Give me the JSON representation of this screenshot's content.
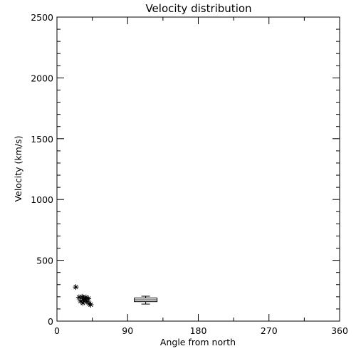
{
  "chart_data": {
    "type": "scatter",
    "title": "Velocity distribution",
    "xlabel": "Angle from north",
    "ylabel": "Velocity (km/s)",
    "xlim": [
      0,
      360
    ],
    "ylim": [
      0,
      2500
    ],
    "x_ticks": [
      "0",
      "90",
      "180",
      "270",
      "360"
    ],
    "y_ticks": [
      "0",
      "500",
      "1000",
      "1500",
      "2000",
      "2500"
    ],
    "grid": false,
    "marker": "asterisk",
    "points": [
      {
        "x": 24,
        "y": 280
      },
      {
        "x": 28,
        "y": 195
      },
      {
        "x": 30,
        "y": 165
      },
      {
        "x": 32,
        "y": 200
      },
      {
        "x": 33,
        "y": 150
      },
      {
        "x": 34,
        "y": 185
      },
      {
        "x": 36,
        "y": 175
      },
      {
        "x": 37,
        "y": 195
      },
      {
        "x": 38,
        "y": 160
      },
      {
        "x": 40,
        "y": 185
      },
      {
        "x": 41,
        "y": 145
      },
      {
        "x": 43,
        "y": 135
      }
    ],
    "boxplot": {
      "x_center": 113,
      "whisker_low": 140,
      "q1": 160,
      "median": 175,
      "q3": 190,
      "whisker_high": 205
    }
  }
}
